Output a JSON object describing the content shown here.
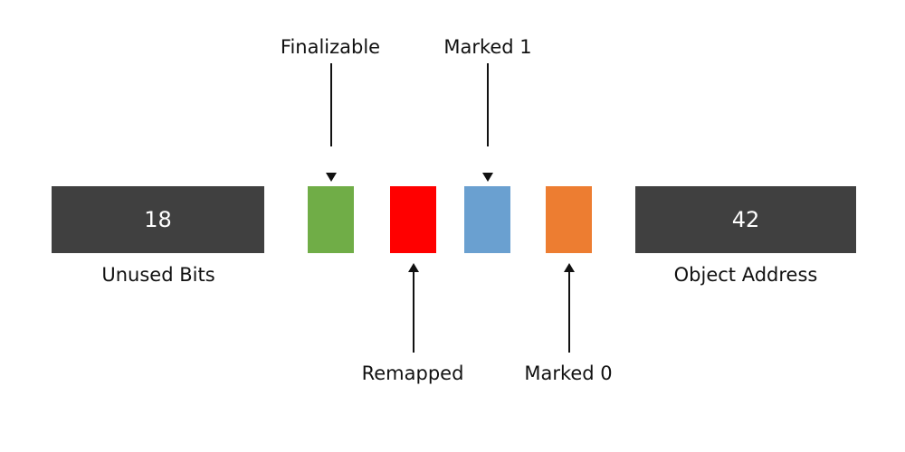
{
  "blocks": {
    "unused_bits": {
      "value": "18",
      "label": "Unused Bits",
      "color": "#404040"
    },
    "finalizable": {
      "color": "#70ad47"
    },
    "remapped": {
      "color": "#ff0000"
    },
    "marked1": {
      "color": "#6aa0d0"
    },
    "marked0": {
      "color": "#ed7d31"
    },
    "object_address": {
      "value": "42",
      "label": "Object Address",
      "color": "#404040"
    }
  },
  "labels": {
    "finalizable": "Finalizable",
    "marked1": "Marked 1",
    "remapped": "Remapped",
    "marked0": "Marked 0"
  }
}
